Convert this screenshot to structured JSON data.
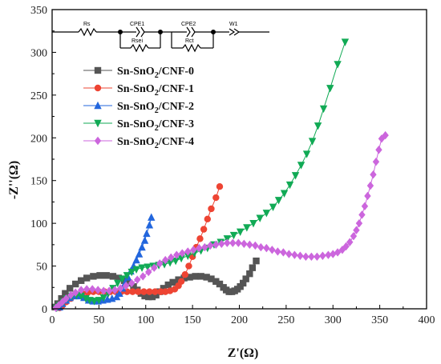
{
  "chart_data": {
    "type": "scatter",
    "xlabel": "Z'(Ω)",
    "ylabel": "-Z''(Ω)",
    "xlim": [
      0,
      400
    ],
    "ylim": [
      0,
      350
    ],
    "xticks": [
      0,
      50,
      100,
      150,
      200,
      250,
      300,
      350,
      400
    ],
    "yticks": [
      0,
      50,
      100,
      150,
      200,
      250,
      300,
      350
    ],
    "grid": false,
    "legend_position": "upper-left",
    "circuit_labels": [
      "Rs",
      "CPE1",
      "Rsei",
      "CPE2",
      "Rct",
      "W1"
    ],
    "series": [
      {
        "name_base": "Sn-SnO",
        "name_sub": "2",
        "name_tail": "/CNF-0",
        "color": "#555555",
        "marker": "square",
        "points": [
          [
            3,
            2
          ],
          [
            6,
            6
          ],
          [
            10,
            12
          ],
          [
            14,
            18
          ],
          [
            19,
            24
          ],
          [
            25,
            29
          ],
          [
            31,
            33
          ],
          [
            37,
            36
          ],
          [
            44,
            38
          ],
          [
            51,
            39
          ],
          [
            58,
            39
          ],
          [
            65,
            38
          ],
          [
            71,
            36
          ],
          [
            77,
            33
          ],
          [
            82,
            30
          ],
          [
            87,
            26
          ],
          [
            91,
            22
          ],
          [
            95,
            18
          ],
          [
            99,
            15
          ],
          [
            103,
            14
          ],
          [
            107,
            14
          ],
          [
            111,
            16
          ],
          [
            115,
            20
          ],
          [
            119,
            24
          ],
          [
            124,
            28
          ],
          [
            129,
            31
          ],
          [
            135,
            34
          ],
          [
            141,
            36
          ],
          [
            147,
            37
          ],
          [
            153,
            38
          ],
          [
            159,
            38
          ],
          [
            165,
            37
          ],
          [
            170,
            35
          ],
          [
            175,
            32
          ],
          [
            179,
            29
          ],
          [
            183,
            25
          ],
          [
            186,
            22
          ],
          [
            189,
            20
          ],
          [
            192,
            20
          ],
          [
            195,
            21
          ],
          [
            198,
            23
          ],
          [
            201,
            26
          ],
          [
            204,
            30
          ],
          [
            207,
            35
          ],
          [
            211,
            41
          ],
          [
            214,
            48
          ],
          [
            218,
            56
          ]
        ]
      },
      {
        "name_base": "Sn-SnO",
        "name_sub": "2",
        "name_tail": "/CNF-1",
        "color": "#ee4433",
        "marker": "circle",
        "points": [
          [
            8,
            1
          ],
          [
            11,
            4
          ],
          [
            15,
            8
          ],
          [
            20,
            12
          ],
          [
            26,
            15
          ],
          [
            32,
            18
          ],
          [
            38,
            19
          ],
          [
            44,
            20
          ],
          [
            50,
            20
          ],
          [
            56,
            20
          ],
          [
            62,
            20
          ],
          [
            68,
            20
          ],
          [
            74,
            20
          ],
          [
            80,
            20
          ],
          [
            86,
            20
          ],
          [
            92,
            20
          ],
          [
            98,
            20
          ],
          [
            104,
            20
          ],
          [
            110,
            20
          ],
          [
            116,
            20
          ],
          [
            121,
            20
          ],
          [
            126,
            21
          ],
          [
            131,
            23
          ],
          [
            135,
            27
          ],
          [
            138,
            32
          ],
          [
            142,
            40
          ],
          [
            146,
            50
          ],
          [
            150,
            61
          ],
          [
            154,
            72
          ],
          [
            158,
            82
          ],
          [
            162,
            93
          ],
          [
            166,
            105
          ],
          [
            170,
            117
          ],
          [
            175,
            130
          ],
          [
            179,
            143
          ]
        ]
      },
      {
        "name_base": "Sn-SnO",
        "name_sub": "2",
        "name_tail": "/CNF-2",
        "color": "#2266dd",
        "marker": "triangle-up",
        "points": [
          [
            8,
            2
          ],
          [
            11,
            6
          ],
          [
            15,
            10
          ],
          [
            19,
            13
          ],
          [
            24,
            15
          ],
          [
            29,
            15
          ],
          [
            34,
            13
          ],
          [
            39,
            10
          ],
          [
            44,
            9
          ],
          [
            49,
            9
          ],
          [
            54,
            10
          ],
          [
            59,
            11
          ],
          [
            64,
            12
          ],
          [
            69,
            14
          ],
          [
            72,
            18
          ],
          [
            75,
            24
          ],
          [
            78,
            30
          ],
          [
            81,
            37
          ],
          [
            84,
            44
          ],
          [
            87,
            50
          ],
          [
            90,
            57
          ],
          [
            93,
            64
          ],
          [
            96,
            72
          ],
          [
            99,
            80
          ],
          [
            101,
            88
          ],
          [
            104,
            98
          ],
          [
            106,
            107
          ]
        ]
      },
      {
        "name_base": "Sn-SnO",
        "name_sub": "2",
        "name_tail": "/CNF-3",
        "color": "#11aa55",
        "marker": "triangle-down",
        "points": [
          [
            5,
            1
          ],
          [
            8,
            4
          ],
          [
            12,
            8
          ],
          [
            16,
            12
          ],
          [
            21,
            15
          ],
          [
            26,
            16
          ],
          [
            31,
            15
          ],
          [
            36,
            12
          ],
          [
            40,
            10
          ],
          [
            45,
            9
          ],
          [
            50,
            10
          ],
          [
            55,
            13
          ],
          [
            60,
            18
          ],
          [
            65,
            24
          ],
          [
            70,
            30
          ],
          [
            75,
            35
          ],
          [
            80,
            39
          ],
          [
            85,
            43
          ],
          [
            90,
            46
          ],
          [
            96,
            48
          ],
          [
            102,
            49
          ],
          [
            108,
            50
          ],
          [
            114,
            51
          ],
          [
            120,
            52
          ],
          [
            126,
            54
          ],
          [
            132,
            56
          ],
          [
            138,
            59
          ],
          [
            145,
            62
          ],
          [
            152,
            65
          ],
          [
            159,
            68
          ],
          [
            166,
            71
          ],
          [
            173,
            75
          ],
          [
            180,
            78
          ],
          [
            187,
            82
          ],
          [
            194,
            86
          ],
          [
            201,
            90
          ],
          [
            208,
            95
          ],
          [
            215,
            100
          ],
          [
            222,
            106
          ],
          [
            229,
            112
          ],
          [
            236,
            119
          ],
          [
            242,
            127
          ],
          [
            248,
            135
          ],
          [
            254,
            145
          ],
          [
            260,
            156
          ],
          [
            266,
            168
          ],
          [
            272,
            181
          ],
          [
            278,
            196
          ],
          [
            284,
            214
          ],
          [
            290,
            234
          ],
          [
            297,
            258
          ],
          [
            305,
            286
          ],
          [
            313,
            312
          ]
        ]
      },
      {
        "name_base": "Sn-SnO",
        "name_sub": "2",
        "name_tail": "/CNF-4",
        "color": "#cc66dd",
        "marker": "diamond",
        "points": [
          [
            4,
            1
          ],
          [
            7,
            4
          ],
          [
            11,
            8
          ],
          [
            15,
            12
          ],
          [
            20,
            16
          ],
          [
            25,
            19
          ],
          [
            31,
            22
          ],
          [
            37,
            23
          ],
          [
            43,
            23
          ],
          [
            49,
            22
          ],
          [
            55,
            21
          ],
          [
            61,
            21
          ],
          [
            67,
            22
          ],
          [
            73,
            24
          ],
          [
            79,
            27
          ],
          [
            85,
            30
          ],
          [
            91,
            34
          ],
          [
            97,
            38
          ],
          [
            103,
            43
          ],
          [
            109,
            48
          ],
          [
            115,
            53
          ],
          [
            121,
            57
          ],
          [
            127,
            60
          ],
          [
            133,
            63
          ],
          [
            139,
            65
          ],
          [
            145,
            67
          ],
          [
            151,
            69
          ],
          [
            157,
            71
          ],
          [
            163,
            72
          ],
          [
            169,
            74
          ],
          [
            175,
            75
          ],
          [
            181,
            76
          ],
          [
            187,
            77
          ],
          [
            193,
            77
          ],
          [
            199,
            77
          ],
          [
            205,
            76
          ],
          [
            211,
            75
          ],
          [
            217,
            74
          ],
          [
            223,
            72
          ],
          [
            229,
            71
          ],
          [
            235,
            69
          ],
          [
            241,
            67
          ],
          [
            247,
            66
          ],
          [
            253,
            64
          ],
          [
            259,
            63
          ],
          [
            265,
            62
          ],
          [
            271,
            61
          ],
          [
            277,
            61
          ],
          [
            283,
            61
          ],
          [
            289,
            62
          ],
          [
            295,
            63
          ],
          [
            300,
            64
          ],
          [
            305,
            66
          ],
          [
            310,
            69
          ],
          [
            314,
            73
          ],
          [
            318,
            78
          ],
          [
            322,
            85
          ],
          [
            325,
            92
          ],
          [
            328,
            100
          ],
          [
            331,
            110
          ],
          [
            334,
            120
          ],
          [
            337,
            132
          ],
          [
            340,
            144
          ],
          [
            343,
            157
          ],
          [
            346,
            172
          ],
          [
            349,
            186
          ],
          [
            352,
            199
          ],
          [
            356,
            203
          ]
        ]
      }
    ]
  }
}
